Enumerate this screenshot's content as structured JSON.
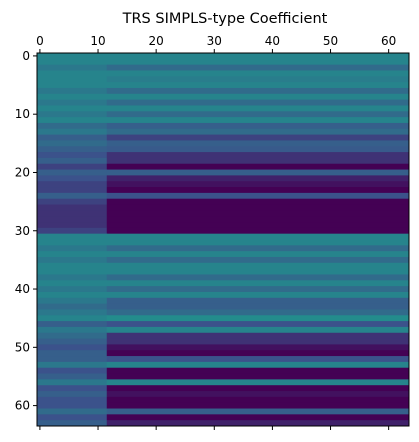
{
  "chart_data": {
    "type": "heatmap",
    "title": "TRS SIMPLS-type Coefficient",
    "xlabel": "",
    "ylabel": "",
    "shape": [
      64,
      64
    ],
    "xlim": [
      -0.5,
      63.5
    ],
    "ylim": [
      63.5,
      -0.5
    ],
    "x_ticks": [
      0,
      10,
      20,
      30,
      40,
      50,
      60
    ],
    "y_ticks": [
      0,
      10,
      20,
      30,
      40,
      50,
      60
    ],
    "x_tick_labels": [
      "0",
      "10",
      "20",
      "30",
      "40",
      "50",
      "60"
    ],
    "y_tick_labels": [
      "0",
      "10",
      "20",
      "30",
      "40",
      "50",
      "60"
    ],
    "x_axis_position": "top",
    "grid": false,
    "colormap": "viridis",
    "value_range": [
      0,
      1
    ],
    "colormap_stops": [
      "#440154",
      "#3b528b",
      "#21918c",
      "#5ec962",
      "#fde725"
    ],
    "columns_left_region": 12,
    "row_values_left": [
      0.45,
      0.45,
      0.4,
      0.45,
      0.45,
      0.45,
      0.4,
      0.45,
      0.4,
      0.45,
      0.4,
      0.45,
      0.35,
      0.4,
      0.3,
      0.35,
      0.3,
      0.25,
      0.3,
      0.2,
      0.3,
      0.25,
      0.2,
      0.2,
      0.3,
      0.2,
      0.15,
      0.15,
      0.15,
      0.15,
      0.2,
      0.45,
      0.45,
      0.4,
      0.45,
      0.4,
      0.45,
      0.45,
      0.4,
      0.45,
      0.4,
      0.45,
      0.4,
      0.35,
      0.4,
      0.45,
      0.3,
      0.4,
      0.35,
      0.3,
      0.25,
      0.3,
      0.3,
      0.4,
      0.25,
      0.3,
      0.4,
      0.25,
      0.3,
      0.25,
      0.25,
      0.35,
      0.25,
      0.3
    ],
    "row_values_right": [
      0.45,
      0.45,
      0.35,
      0.45,
      0.42,
      0.45,
      0.35,
      0.45,
      0.35,
      0.45,
      0.35,
      0.45,
      0.3,
      0.35,
      0.2,
      0.3,
      0.28,
      0.15,
      0.15,
      0.0,
      0.3,
      0.1,
      0.05,
      0.0,
      0.25,
      0.0,
      0.0,
      0.0,
      0.0,
      0.0,
      0.0,
      0.45,
      0.45,
      0.35,
      0.45,
      0.35,
      0.45,
      0.45,
      0.35,
      0.45,
      0.35,
      0.45,
      0.3,
      0.3,
      0.35,
      0.48,
      0.25,
      0.45,
      0.15,
      0.15,
      0.05,
      0.0,
      0.25,
      0.45,
      0.0,
      0.0,
      0.45,
      0.0,
      0.05,
      0.0,
      0.0,
      0.3,
      0.0,
      0.1
    ]
  }
}
